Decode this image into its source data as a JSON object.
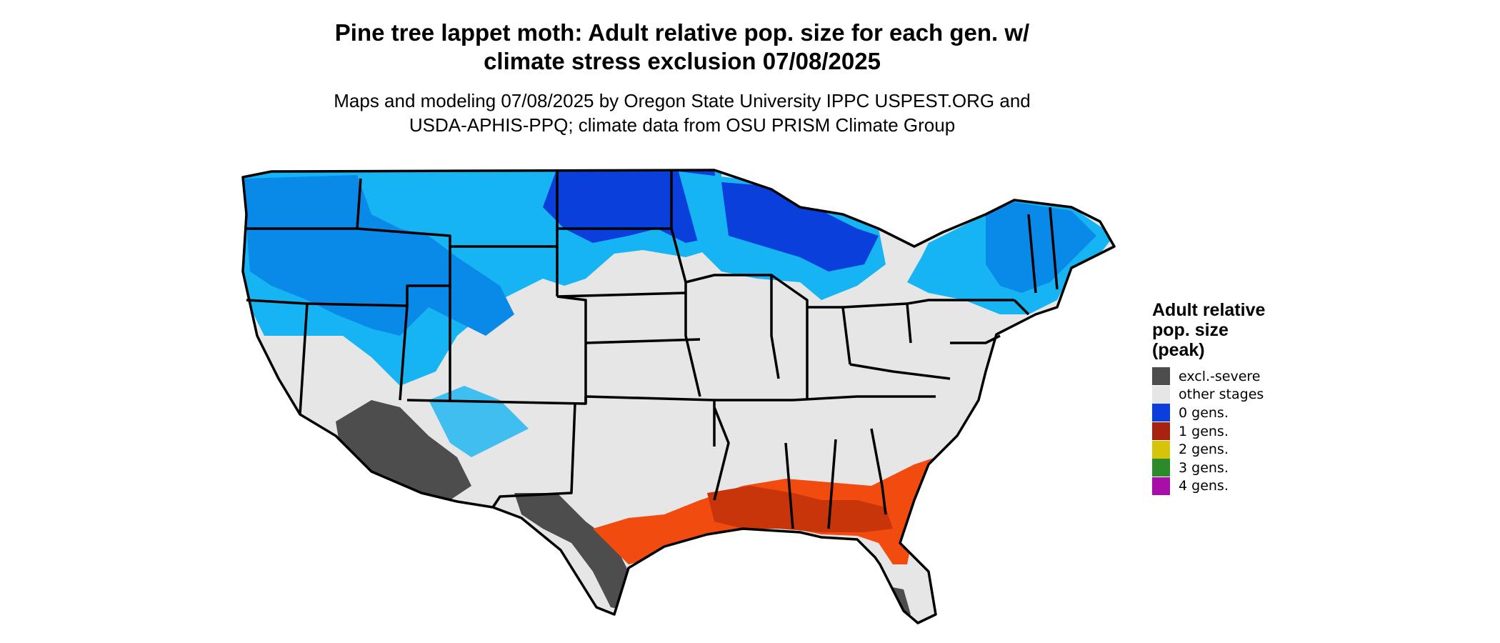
{
  "title": {
    "line1": "Pine tree lappet moth: Adult relative pop. size for each gen. w/",
    "line2": "climate stress exclusion 07/08/2025"
  },
  "subtitle": {
    "line1": "Maps and modeling 07/08/2025 by Oregon State University IPPC USPEST.ORG and",
    "line2": "USDA-APHIS-PPQ; climate data from OSU PRISM Climate Group"
  },
  "legend": {
    "title_lines": [
      "Adult relative",
      "pop. size",
      "(peak)"
    ],
    "items": [
      {
        "label": "excl.-severe",
        "color": "#4d4d4d"
      },
      {
        "label": "other stages",
        "color": "#e6e6e6"
      },
      {
        "label": "0 gens.",
        "color": "#0a3fdc"
      },
      {
        "label": "1 gens.",
        "color": "#a8230f"
      },
      {
        "label": "2 gens.",
        "color": "#d6c40a"
      },
      {
        "label": "3 gens.",
        "color": "#2b8a2b"
      },
      {
        "label": "4 gens.",
        "color": "#a80ea8"
      }
    ]
  },
  "map_colors": {
    "land": "#e6e6e6",
    "blue_light": "#16b4f2",
    "blue_mid": "#0a8ae8",
    "blue_dark": "#0a3fdc",
    "orange": "#f24b10",
    "orange_dark": "#c8350a",
    "excluded": "#4d4d4d",
    "border": "#000000"
  }
}
